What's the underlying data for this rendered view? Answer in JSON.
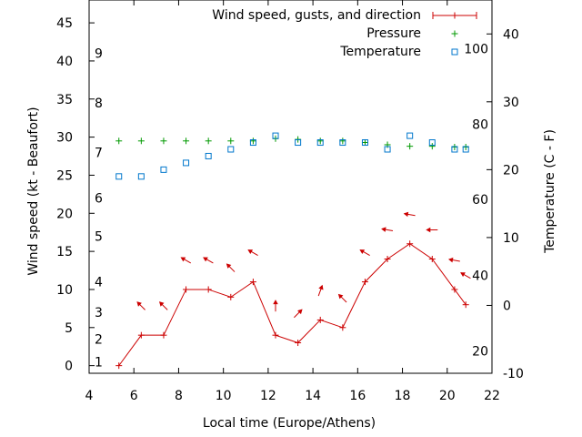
{
  "chart_data": {
    "type": "line",
    "xlabel": "Local time (Europe/Athens)",
    "ylabel": "Wind speed (kt - Beaufort)",
    "y2label": "Temperature (C - F)",
    "xlim": [
      4,
      22
    ],
    "ylim": [
      -1,
      48
    ],
    "y2lim": [
      -10,
      45
    ],
    "grid": false,
    "legend_position": "top-right",
    "x_ticks": [
      "4",
      "6",
      "8",
      "10",
      "12",
      "14",
      "16",
      "18",
      "20",
      "22"
    ],
    "y_ticks": [
      "0",
      "5",
      "10",
      "15",
      "20",
      "25",
      "30",
      "35",
      "40",
      "45"
    ],
    "y2_ticks": [
      "-10",
      "0",
      "10",
      "20",
      "30",
      "40"
    ],
    "beaufort_labels": [
      {
        "label": "1",
        "value": 0.5
      },
      {
        "label": "2",
        "value": 3.5
      },
      {
        "label": "3",
        "value": 7
      },
      {
        "label": "4",
        "value": 11
      },
      {
        "label": "5",
        "value": 17
      },
      {
        "label": "6",
        "value": 22
      },
      {
        "label": "7",
        "value": 28
      },
      {
        "label": "8",
        "value": 34.5
      },
      {
        "label": "9",
        "value": 41
      }
    ],
    "fahrenheit_labels": [
      {
        "label": "20",
        "value": -6.7
      },
      {
        "label": "40",
        "value": 4.4
      },
      {
        "label": "60",
        "value": 15.6
      },
      {
        "label": "80",
        "value": 26.7
      },
      {
        "label": "100",
        "value": 37.8
      }
    ],
    "series": [
      {
        "name": "Wind speed, gusts, and direction",
        "color": "#cc0000",
        "x": [
          5.33,
          6.33,
          7.33,
          8.33,
          9.33,
          10.33,
          11.33,
          12.33,
          13.33,
          14.33,
          15.33,
          16.33,
          17.33,
          18.33,
          19.33,
          20.33,
          20.83
        ],
        "values": [
          0,
          4,
          4,
          10,
          10,
          9,
          11,
          4,
          3,
          6,
          5,
          11,
          14,
          16,
          14,
          10,
          8
        ],
        "direction_deg": [
          null,
          315,
          315,
          300,
          300,
          315,
          300,
          0,
          45,
          20,
          315,
          300,
          280,
          280,
          270,
          280,
          300
        ]
      },
      {
        "name": "Pressure",
        "color": "#009900",
        "x": [
          5.33,
          6.33,
          7.33,
          8.33,
          9.33,
          10.33,
          11.33,
          12.33,
          13.33,
          14.33,
          15.33,
          16.33,
          17.33,
          18.33,
          19.33,
          20.33,
          20.83
        ],
        "values": [
          29.5,
          29.5,
          29.5,
          29.5,
          29.5,
          29.5,
          29.5,
          29.8,
          29.7,
          29.5,
          29.5,
          29.3,
          29.0,
          28.8,
          28.8,
          28.7,
          28.7
        ]
      },
      {
        "name": "Temperature",
        "color": "#0077cc",
        "x": [
          5.33,
          6.33,
          7.33,
          8.33,
          9.33,
          10.33,
          11.33,
          12.33,
          13.33,
          14.33,
          15.33,
          16.33,
          17.33,
          18.33,
          19.33,
          20.33,
          20.83
        ],
        "values": [
          19,
          19,
          20,
          21,
          22,
          23,
          24,
          25,
          24,
          24,
          24,
          24,
          23,
          25,
          24,
          23,
          23
        ]
      }
    ]
  }
}
